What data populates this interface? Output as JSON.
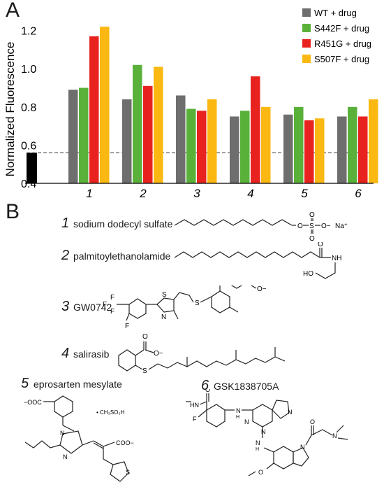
{
  "panels": {
    "a": "A",
    "b": "B"
  },
  "chart_data": {
    "type": "bar",
    "ylabel": "Normalized Fluorescence",
    "ylim": [
      0.4,
      1.25
    ],
    "yticks": [
      "0.4",
      "0.6",
      "0.8",
      "1.0",
      "1.2"
    ],
    "ytick_values": [
      0.4,
      0.6,
      0.8,
      1.0,
      1.2
    ],
    "categories": [
      "1",
      "2",
      "3",
      "4",
      "5",
      "6"
    ],
    "baseline": {
      "value": 0.56,
      "color": "#000000",
      "line_style": "dashed"
    },
    "series": [
      {
        "name": "WT + drug",
        "color": "#6e6e6e",
        "values": [
          0.89,
          0.84,
          0.86,
          0.75,
          0.76,
          0.75
        ]
      },
      {
        "name": "S442F + drug",
        "color": "#5ab13a",
        "values": [
          0.9,
          1.02,
          0.79,
          0.78,
          0.8,
          0.8
        ]
      },
      {
        "name": "R451G + drug",
        "color": "#e8231f",
        "values": [
          1.17,
          0.91,
          0.78,
          0.96,
          0.73,
          0.75
        ]
      },
      {
        "name": "S507F + drug",
        "color": "#fbb812",
        "values": [
          1.22,
          1.01,
          0.84,
          0.8,
          0.74,
          0.84
        ]
      }
    ],
    "legend_position": "top-right",
    "grid": false
  },
  "compounds": [
    {
      "number": "1",
      "name": "sodium dodecyl sulfate"
    },
    {
      "number": "2",
      "name": "palmitoylethanolamide"
    },
    {
      "number": "3",
      "name": "GW0742"
    },
    {
      "number": "4",
      "name": "salirasib"
    },
    {
      "number": "5",
      "name": "eprosarten mesylate"
    },
    {
      "number": "6",
      "name": "GSK1838705A"
    }
  ],
  "structure_labels": {
    "sds_o1": "O",
    "sds_s": "S",
    "sds_o2": "O",
    "sds_o3": "O",
    "sds_ominus": "O−",
    "sds_na": "Na⁺",
    "pea_o": "O",
    "pea_nh": "NH",
    "pea_ho": "HO",
    "gw_f1": "F",
    "gw_f2": "F",
    "gw_f3": "F",
    "gw_f4": "F",
    "gw_s1": "S",
    "gw_n": "N",
    "gw_s2": "S",
    "gw_o1": "O",
    "gw_o2": "O",
    "gw_ominus": "O−",
    "sal_o": "O",
    "sal_ominus": "O−",
    "sal_s": "S",
    "ep_cooa": "−OOC",
    "ep_ms": "• CH₃SO₃H",
    "ep_n1": "N",
    "ep_n2": "N",
    "ep_coob": "COO−",
    "ep_s": "S",
    "gsk_hn": "HN",
    "gsk_o1": "O",
    "gsk_f": "F",
    "gsk_n1": "N",
    "gsk_nh1": "N",
    "gsk_h1": "H",
    "gsk_n2": "N",
    "gsk_n3": "N",
    "gsk_nh2": "N",
    "gsk_h2": "H",
    "gsk_n4": "N",
    "gsk_o2": "O",
    "gsk_nme": "N",
    "gsk_ome": "O"
  }
}
